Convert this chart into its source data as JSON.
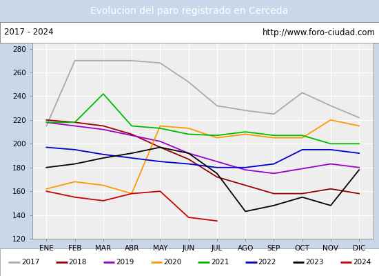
{
  "title": "Evolucion del paro registrado en Cerceda",
  "subtitle_left": "2017 - 2024",
  "subtitle_right": "http://www.foro-ciudad.com",
  "title_bg_color": "#5b9bd5",
  "title_text_color": "#ffffff",
  "months": [
    "ENE",
    "FEB",
    "MAR",
    "ABR",
    "MAY",
    "JUN",
    "JUL",
    "AGO",
    "SEP",
    "OCT",
    "NOV",
    "DIC"
  ],
  "ylim": [
    120,
    285
  ],
  "yticks": [
    120,
    140,
    160,
    180,
    200,
    220,
    240,
    260,
    280
  ],
  "series": {
    "2017": {
      "color": "#aaaaaa",
      "data": [
        215,
        270,
        270,
        270,
        268,
        252,
        232,
        228,
        225,
        243,
        232,
        222
      ]
    },
    "2018": {
      "color": "#990000",
      "data": [
        220,
        218,
        215,
        208,
        197,
        187,
        172,
        165,
        158,
        158,
        162,
        158
      ]
    },
    "2019": {
      "color": "#9900cc",
      "data": [
        218,
        215,
        212,
        207,
        202,
        192,
        185,
        178,
        175,
        179,
        183,
        180
      ]
    },
    "2020": {
      "color": "#ff9900",
      "data": [
        162,
        168,
        165,
        158,
        215,
        213,
        205,
        208,
        205,
        205,
        220,
        215
      ]
    },
    "2021": {
      "color": "#00bb00",
      "data": [
        218,
        218,
        242,
        215,
        213,
        208,
        207,
        210,
        207,
        207,
        200,
        200
      ]
    },
    "2022": {
      "color": "#0000cc",
      "data": [
        197,
        195,
        191,
        188,
        185,
        183,
        180,
        180,
        183,
        195,
        195,
        192
      ]
    },
    "2023": {
      "color": "#000000",
      "data": [
        180,
        183,
        188,
        192,
        197,
        192,
        175,
        143,
        148,
        155,
        148,
        178
      ]
    },
    "2024": {
      "color": "#cc0000",
      "data": [
        160,
        155,
        152,
        158,
        160,
        138,
        135,
        null,
        null,
        null,
        null,
        null
      ]
    }
  },
  "plot_bg_color": "#eeeeee",
  "grid_color": "#ffffff"
}
